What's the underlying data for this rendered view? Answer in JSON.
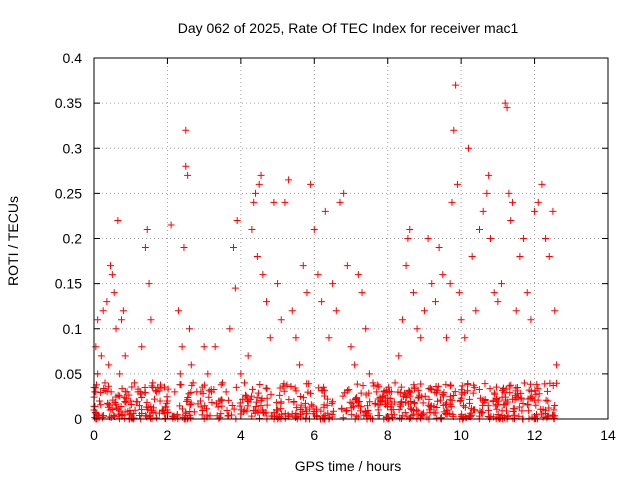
{
  "chart_data": {
    "type": "scatter",
    "title": "Day 062 of 2025, Rate Of TEC Index for receiver mac1",
    "xlabel": "GPS time / hours",
    "ylabel": "ROTI / TECUs",
    "xlim": [
      0,
      14
    ],
    "ylim": [
      0,
      0.4
    ],
    "x_ticks": [
      "0",
      "2",
      "4",
      "6",
      "8",
      "10",
      "12",
      "14"
    ],
    "y_ticks": [
      "0",
      "0.05",
      "0.1",
      "0.15",
      "0.2",
      "0.25",
      "0.3",
      "0.35",
      "0.4"
    ],
    "grid": true,
    "marker": "+",
    "series": [
      {
        "name": "ROTI",
        "color": "#ff0000",
        "points": [
          [
            0.0,
            0.01
          ],
          [
            0.05,
            0.03
          ],
          [
            0.05,
            0.08
          ],
          [
            0.1,
            0.05
          ],
          [
            0.1,
            0.11
          ],
          [
            0.15,
            0.02
          ],
          [
            0.2,
            0.07
          ],
          [
            0.25,
            0.12
          ],
          [
            0.3,
            0.04
          ],
          [
            0.35,
            0.13
          ],
          [
            0.4,
            0.06
          ],
          [
            0.45,
            0.17
          ],
          [
            0.5,
            0.16
          ],
          [
            0.55,
            0.14
          ],
          [
            0.6,
            0.1
          ],
          [
            0.65,
            0.22
          ],
          [
            0.7,
            0.05
          ],
          [
            0.75,
            0.11
          ],
          [
            0.8,
            0.12
          ],
          [
            0.85,
            0.07
          ],
          [
            0.9,
            0.03
          ],
          [
            1.0,
            0.02
          ],
          [
            1.1,
            0.04
          ],
          [
            1.2,
            0.03
          ],
          [
            1.3,
            0.08
          ],
          [
            1.4,
            0.19
          ],
          [
            1.45,
            0.21
          ],
          [
            1.5,
            0.15
          ],
          [
            1.55,
            0.11
          ],
          [
            1.6,
            0.04
          ],
          [
            1.7,
            0.03
          ],
          [
            1.8,
            0.02
          ],
          [
            1.9,
            0.01
          ],
          [
            2.0,
            0.02
          ],
          [
            2.1,
            0.215
          ],
          [
            2.2,
            0.03
          ],
          [
            2.3,
            0.12
          ],
          [
            2.35,
            0.05
          ],
          [
            2.4,
            0.08
          ],
          [
            2.45,
            0.19
          ],
          [
            2.5,
            0.28
          ],
          [
            2.5,
            0.32
          ],
          [
            2.55,
            0.27
          ],
          [
            2.6,
            0.1
          ],
          [
            2.65,
            0.06
          ],
          [
            2.7,
            0.04
          ],
          [
            2.8,
            0.03
          ],
          [
            2.9,
            0.02
          ],
          [
            3.0,
            0.08
          ],
          [
            3.1,
            0.05
          ],
          [
            3.2,
            0.03
          ],
          [
            3.3,
            0.08
          ],
          [
            3.4,
            0.02
          ],
          [
            3.5,
            0.04
          ],
          [
            3.6,
            0.03
          ],
          [
            3.7,
            0.1
          ],
          [
            3.8,
            0.19
          ],
          [
            3.85,
            0.145
          ],
          [
            3.9,
            0.22
          ],
          [
            4.0,
            0.05
          ],
          [
            4.1,
            0.04
          ],
          [
            4.2,
            0.07
          ],
          [
            4.3,
            0.21
          ],
          [
            4.35,
            0.24
          ],
          [
            4.4,
            0.25
          ],
          [
            4.45,
            0.18
          ],
          [
            4.5,
            0.26
          ],
          [
            4.55,
            0.27
          ],
          [
            4.6,
            0.16
          ],
          [
            4.7,
            0.13
          ],
          [
            4.8,
            0.09
          ],
          [
            4.9,
            0.24
          ],
          [
            5.0,
            0.15
          ],
          [
            5.1,
            0.11
          ],
          [
            5.2,
            0.24
          ],
          [
            5.3,
            0.265
          ],
          [
            5.4,
            0.12
          ],
          [
            5.5,
            0.09
          ],
          [
            5.6,
            0.06
          ],
          [
            5.7,
            0.17
          ],
          [
            5.8,
            0.14
          ],
          [
            5.9,
            0.26
          ],
          [
            6.0,
            0.21
          ],
          [
            6.1,
            0.16
          ],
          [
            6.2,
            0.13
          ],
          [
            6.3,
            0.23
          ],
          [
            6.4,
            0.09
          ],
          [
            6.5,
            0.15
          ],
          [
            6.6,
            0.12
          ],
          [
            6.7,
            0.24
          ],
          [
            6.8,
            0.25
          ],
          [
            6.9,
            0.17
          ],
          [
            7.0,
            0.08
          ],
          [
            7.1,
            0.06
          ],
          [
            7.2,
            0.16
          ],
          [
            7.3,
            0.14
          ],
          [
            7.4,
            0.1
          ],
          [
            7.5,
            0.05
          ],
          [
            7.6,
            0.04
          ],
          [
            7.7,
            0.03
          ],
          [
            7.8,
            0.02
          ],
          [
            7.9,
            0.03
          ],
          [
            8.0,
            0.02
          ],
          [
            8.1,
            0.03
          ],
          [
            8.2,
            0.04
          ],
          [
            8.3,
            0.07
          ],
          [
            8.4,
            0.11
          ],
          [
            8.5,
            0.17
          ],
          [
            8.55,
            0.2
          ],
          [
            8.6,
            0.21
          ],
          [
            8.7,
            0.14
          ],
          [
            8.8,
            0.1
          ],
          [
            8.9,
            0.09
          ],
          [
            9.0,
            0.12
          ],
          [
            9.1,
            0.2
          ],
          [
            9.2,
            0.15
          ],
          [
            9.3,
            0.13
          ],
          [
            9.4,
            0.19
          ],
          [
            9.5,
            0.16
          ],
          [
            9.6,
            0.09
          ],
          [
            9.7,
            0.15
          ],
          [
            9.75,
            0.24
          ],
          [
            9.8,
            0.32
          ],
          [
            9.85,
            0.37
          ],
          [
            9.9,
            0.26
          ],
          [
            9.95,
            0.14
          ],
          [
            10.0,
            0.11
          ],
          [
            10.1,
            0.09
          ],
          [
            10.2,
            0.3
          ],
          [
            10.3,
            0.18
          ],
          [
            10.4,
            0.12
          ],
          [
            10.5,
            0.21
          ],
          [
            10.6,
            0.23
          ],
          [
            10.7,
            0.25
          ],
          [
            10.75,
            0.27
          ],
          [
            10.8,
            0.2
          ],
          [
            10.9,
            0.14
          ],
          [
            11.0,
            0.13
          ],
          [
            11.1,
            0.15
          ],
          [
            11.2,
            0.35
          ],
          [
            11.25,
            0.345
          ],
          [
            11.3,
            0.25
          ],
          [
            11.35,
            0.22
          ],
          [
            11.4,
            0.24
          ],
          [
            11.5,
            0.12
          ],
          [
            11.6,
            0.18
          ],
          [
            11.7,
            0.2
          ],
          [
            11.8,
            0.14
          ],
          [
            11.9,
            0.11
          ],
          [
            12.0,
            0.23
          ],
          [
            12.1,
            0.24
          ],
          [
            12.2,
            0.26
          ],
          [
            12.3,
            0.2
          ],
          [
            12.4,
            0.18
          ],
          [
            12.5,
            0.23
          ],
          [
            12.55,
            0.12
          ],
          [
            12.6,
            0.06
          ]
        ],
        "baseline_band": {
          "x_range": [
            0.0,
            12.6
          ],
          "y_range": [
            0.0,
            0.04
          ]
        }
      }
    ]
  }
}
